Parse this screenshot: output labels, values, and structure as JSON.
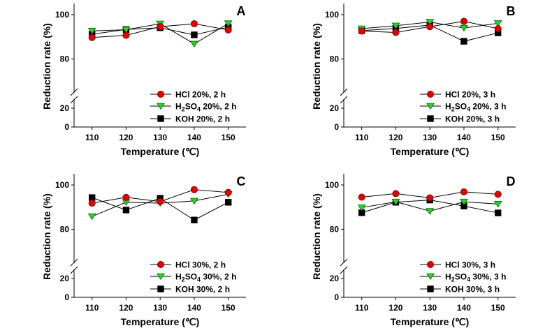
{
  "figure": {
    "panel_count": 4,
    "layout": "2x2"
  },
  "chart_data": [
    {
      "type": "line",
      "panel_label": "A",
      "title": "",
      "xlabel": "Temperature (℃)",
      "ylabel": "Reduction rate (%)",
      "x": [
        110,
        120,
        130,
        140,
        150
      ],
      "x_ticks": [
        "110",
        "120",
        "130",
        "140",
        "150"
      ],
      "y_ticks": [
        "0",
        "20",
        "80",
        "100"
      ],
      "y_axis_break": [
        25,
        70
      ],
      "ylim": [
        0,
        105
      ],
      "legend_position": "lower-right",
      "grid": false,
      "series": [
        {
          "name": "HCl 20%, 2 h",
          "name_parts": [
            "HCl 20%, 2 h"
          ],
          "marker": "circle",
          "color": "#e30000",
          "values": [
            89.7,
            90.7,
            94.6,
            95.9,
            93.1
          ]
        },
        {
          "name": "H2SO4 20%, 2 h",
          "name_parts": [
            "H",
            "2",
            "SO",
            "4",
            " 20%, 2 h"
          ],
          "marker": "triangle-down",
          "color": "#22d822",
          "values": [
            92.7,
            93.2,
            95.9,
            86.8,
            96.0
          ]
        },
        {
          "name": "KOH 20%, 2 h",
          "name_parts": [
            "KOH 20%, 2 h"
          ],
          "marker": "square",
          "color": "#000000",
          "values": [
            91.2,
            93.3,
            94.1,
            90.9,
            94.4
          ]
        }
      ]
    },
    {
      "type": "line",
      "panel_label": "B",
      "title": "",
      "xlabel": "Temperature (℃)",
      "ylabel": "Reduction rate (%)",
      "x": [
        110,
        120,
        130,
        140,
        150
      ],
      "x_ticks": [
        "110",
        "120",
        "130",
        "140",
        "150"
      ],
      "y_ticks": [
        "0",
        "20",
        "80",
        "100"
      ],
      "y_axis_break": [
        25,
        70
      ],
      "ylim": [
        0,
        105
      ],
      "legend_position": "lower-right",
      "grid": false,
      "series": [
        {
          "name": "HCl 20%, 3 h",
          "name_parts": [
            "HCl 20%, 3 h"
          ],
          "marker": "circle",
          "color": "#e30000",
          "values": [
            92.6,
            92.0,
            94.6,
            97.0,
            93.7
          ]
        },
        {
          "name": "H2SO4 20%, 3 h",
          "name_parts": [
            "H",
            "2",
            "SO",
            "4",
            " 20%, 3 h"
          ],
          "marker": "triangle-down",
          "color": "#22d822",
          "values": [
            93.7,
            95.0,
            96.7,
            94.0,
            96.1
          ]
        },
        {
          "name": "KOH 20%, 3 h",
          "name_parts": [
            "KOH 20%, 3 h"
          ],
          "marker": "square",
          "color": "#000000",
          "values": [
            92.8,
            93.8,
            95.3,
            88.0,
            91.8
          ]
        }
      ]
    },
    {
      "type": "line",
      "panel_label": "C",
      "title": "",
      "xlabel": "Temperature (℃)",
      "ylabel": "Reduction rate (%)",
      "x": [
        110,
        120,
        130,
        140,
        150
      ],
      "x_ticks": [
        "110",
        "120",
        "130",
        "140",
        "150"
      ],
      "y_ticks": [
        "0",
        "20",
        "80",
        "100"
      ],
      "y_axis_break": [
        25,
        70
      ],
      "ylim": [
        0,
        105
      ],
      "legend_position": "lower-right",
      "grid": false,
      "series": [
        {
          "name": "HCl 30%, 2 h",
          "name_parts": [
            "HCl 30%, 2 h"
          ],
          "marker": "circle",
          "color": "#e30000",
          "values": [
            91.8,
            94.4,
            92.5,
            97.9,
            96.6
          ]
        },
        {
          "name": "H2SO4 30%, 2 h",
          "name_parts": [
            "H",
            "2",
            "SO",
            "4",
            " 30%, 2 h"
          ],
          "marker": "triangle-down",
          "color": "#22d822",
          "values": [
            85.8,
            92.2,
            91.8,
            92.8,
            95.8
          ]
        },
        {
          "name": "KOH 30%, 2 h",
          "name_parts": [
            "KOH 30%, 2 h"
          ],
          "marker": "square",
          "color": "#000000",
          "values": [
            94.3,
            88.7,
            94.0,
            84.2,
            92.2
          ]
        }
      ]
    },
    {
      "type": "line",
      "panel_label": "D",
      "title": "",
      "xlabel": "Temperature (℃)",
      "ylabel": "Reduction rate (%)",
      "x": [
        110,
        120,
        130,
        140,
        150
      ],
      "x_ticks": [
        "110",
        "120",
        "130",
        "140",
        "150"
      ],
      "y_ticks": [
        "0",
        "20",
        "80",
        "100"
      ],
      "y_axis_break": [
        25,
        70
      ],
      "ylim": [
        0,
        105
      ],
      "legend_position": "lower-right",
      "grid": false,
      "series": [
        {
          "name": "HCl 30%, 3 h",
          "name_parts": [
            "HCl 30%, 3 h"
          ],
          "marker": "circle",
          "color": "#e30000",
          "values": [
            94.5,
            96.1,
            94.2,
            96.9,
            95.8
          ]
        },
        {
          "name": "H2SO4 30%, 3 h",
          "name_parts": [
            "H",
            "2",
            "SO",
            "4",
            " 30%, 3 h"
          ],
          "marker": "triangle-down",
          "color": "#22d822",
          "values": [
            89.8,
            92.4,
            88.2,
            92.4,
            91.4
          ]
        },
        {
          "name": "KOH 30%, 3 h",
          "name_parts": [
            "KOH 30%, 3 h"
          ],
          "marker": "square",
          "color": "#000000",
          "values": [
            87.5,
            92.2,
            93.2,
            90.5,
            87.4
          ]
        }
      ]
    }
  ]
}
